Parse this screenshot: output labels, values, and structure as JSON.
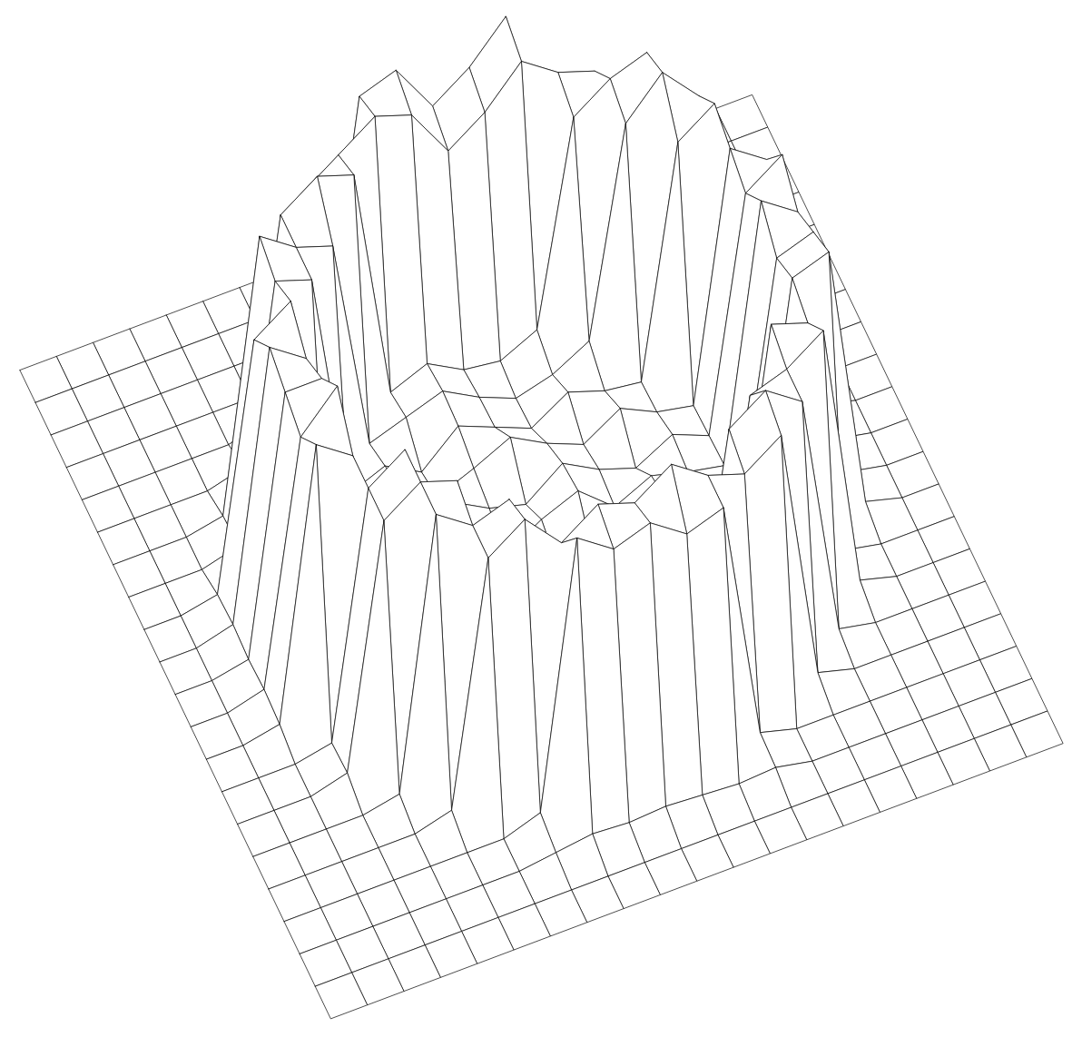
{
  "chart_data": {
    "type": "wireframe",
    "tick_labels": false,
    "color": "#000000",
    "x": [
      -10,
      -9,
      -8,
      -7,
      -6,
      -5,
      -4,
      -3,
      -2,
      -1,
      0,
      1,
      2,
      3,
      4,
      5,
      6,
      7,
      8,
      9,
      10
    ],
    "y": [
      -10,
      -9,
      -8,
      -7,
      -6,
      -5,
      -4,
      -3,
      -2,
      -1,
      0,
      1,
      2,
      3,
      4,
      5,
      6,
      7,
      8,
      9,
      10
    ],
    "z": [
      [
        0,
        0,
        0,
        0,
        0,
        0,
        0,
        0,
        0,
        0,
        0,
        0,
        0,
        0,
        0,
        0,
        0,
        0,
        0,
        0,
        0
      ],
      [
        0,
        0,
        0,
        0,
        0,
        0,
        0,
        0,
        0,
        0,
        0,
        0,
        0,
        0,
        0,
        0,
        0,
        0,
        0,
        0,
        0
      ],
      [
        0,
        0,
        0,
        0,
        0,
        0,
        0,
        0.3,
        0.4,
        0.3,
        0.2,
        0.4,
        0.3,
        0.3,
        0,
        0,
        0,
        0,
        0,
        0,
        0
      ],
      [
        0,
        0,
        0,
        0,
        0,
        0,
        0,
        0.5,
        10.5,
        11,
        9,
        10,
        11.5,
        0.5,
        0,
        0,
        0,
        0,
        0,
        0,
        0
      ],
      [
        0,
        0,
        0,
        0,
        0,
        0.5,
        9,
        10,
        11,
        10.5,
        8.5,
        9.5,
        11,
        10,
        9.5,
        0.5,
        0,
        0,
        0,
        0,
        0
      ],
      [
        0,
        0,
        0,
        0,
        0.4,
        10,
        11,
        10.5,
        1.2,
        1.8,
        1,
        0.8,
        1.5,
        9.5,
        10.5,
        11,
        0.4,
        0,
        0,
        0,
        0
      ],
      [
        0,
        0,
        0,
        0.3,
        11,
        10,
        9.5,
        1,
        1.5,
        2,
        1.2,
        0.6,
        1,
        1.8,
        10,
        11.5,
        10,
        0.3,
        0,
        0,
        0
      ],
      [
        0,
        0,
        0,
        0.4,
        10.5,
        10,
        0.8,
        1.4,
        0.6,
        1.9,
        1.3,
        0.7,
        1.6,
        1.1,
        0.9,
        10,
        11,
        0.4,
        0,
        0,
        0
      ],
      [
        0,
        0,
        0.3,
        10,
        11,
        0.6,
        1.2,
        1.8,
        0.9,
        1.5,
        2.2,
        1.4,
        0.8,
        1.7,
        1,
        0.7,
        10.5,
        9.5,
        0.3,
        0,
        0
      ],
      [
        0,
        0,
        0.4,
        11,
        10,
        0.9,
        1.6,
        0.7,
        2,
        1.2,
        0.8,
        1.9,
        1.1,
        0.6,
        1.4,
        0.8,
        10,
        11,
        0.4,
        0,
        0
      ],
      [
        0,
        0,
        0.3,
        10.5,
        10.5,
        0.7,
        1.1,
        1.9,
        1.3,
        0.6,
        1.5,
        2.1,
        0.9,
        1.6,
        1.2,
        0.9,
        11,
        10,
        0.3,
        0,
        0
      ],
      [
        0,
        0,
        0.4,
        10,
        11.5,
        1,
        1.4,
        0.8,
        1.7,
        2.3,
        1,
        0.7,
        1.5,
        1.9,
        0.8,
        0.6,
        10,
        10.5,
        0.3,
        0,
        0
      ],
      [
        0,
        0,
        0.3,
        11,
        10,
        0.6,
        1.8,
        1.2,
        0.9,
        1.4,
        1.7,
        1.2,
        2,
        1,
        1.3,
        0.7,
        10.5,
        11,
        0.4,
        0,
        0
      ],
      [
        0,
        0,
        0,
        0.3,
        10,
        11,
        1.1,
        0.7,
        1.6,
        1.2,
        2,
        1.4,
        0.9,
        1.5,
        0.8,
        10.5,
        10,
        0.3,
        0,
        0,
        0
      ],
      [
        0,
        0,
        0,
        0.4,
        10,
        11,
        10.5,
        1.4,
        0.9,
        1.7,
        1.1,
        1.9,
        1.3,
        0.8,
        9.5,
        10,
        11,
        0.4,
        0,
        0,
        0
      ],
      [
        0,
        0,
        0,
        0,
        0.3,
        11,
        10,
        10.5,
        1.3,
        0.8,
        1.6,
        1.2,
        0.9,
        10,
        11,
        10,
        0.3,
        0,
        0,
        0,
        0
      ],
      [
        0,
        0,
        0,
        0,
        0,
        0.4,
        10,
        11,
        9.5,
        10.5,
        10,
        11,
        10,
        9.5,
        10.5,
        0.4,
        0,
        0,
        0,
        0,
        0
      ],
      [
        0,
        0,
        0,
        0,
        0,
        0,
        0,
        0.5,
        11,
        10,
        10.5,
        9.5,
        10,
        0.4,
        0,
        0,
        0,
        0,
        0,
        0,
        0
      ],
      [
        0,
        0,
        0,
        0,
        0,
        0,
        0,
        0.2,
        0.4,
        0.3,
        0.4,
        0.3,
        0.2,
        0.3,
        0,
        0,
        0,
        0,
        0,
        0,
        0
      ],
      [
        0,
        0,
        0,
        0,
        0,
        0,
        0,
        0,
        0,
        0,
        0,
        0,
        0,
        0,
        0,
        0,
        0,
        0,
        0,
        0,
        0
      ],
      [
        0,
        0,
        0,
        0,
        0,
        0,
        0,
        0,
        0,
        0,
        0,
        0,
        0,
        0,
        0,
        0,
        0,
        0,
        0,
        0,
        0
      ]
    ]
  }
}
